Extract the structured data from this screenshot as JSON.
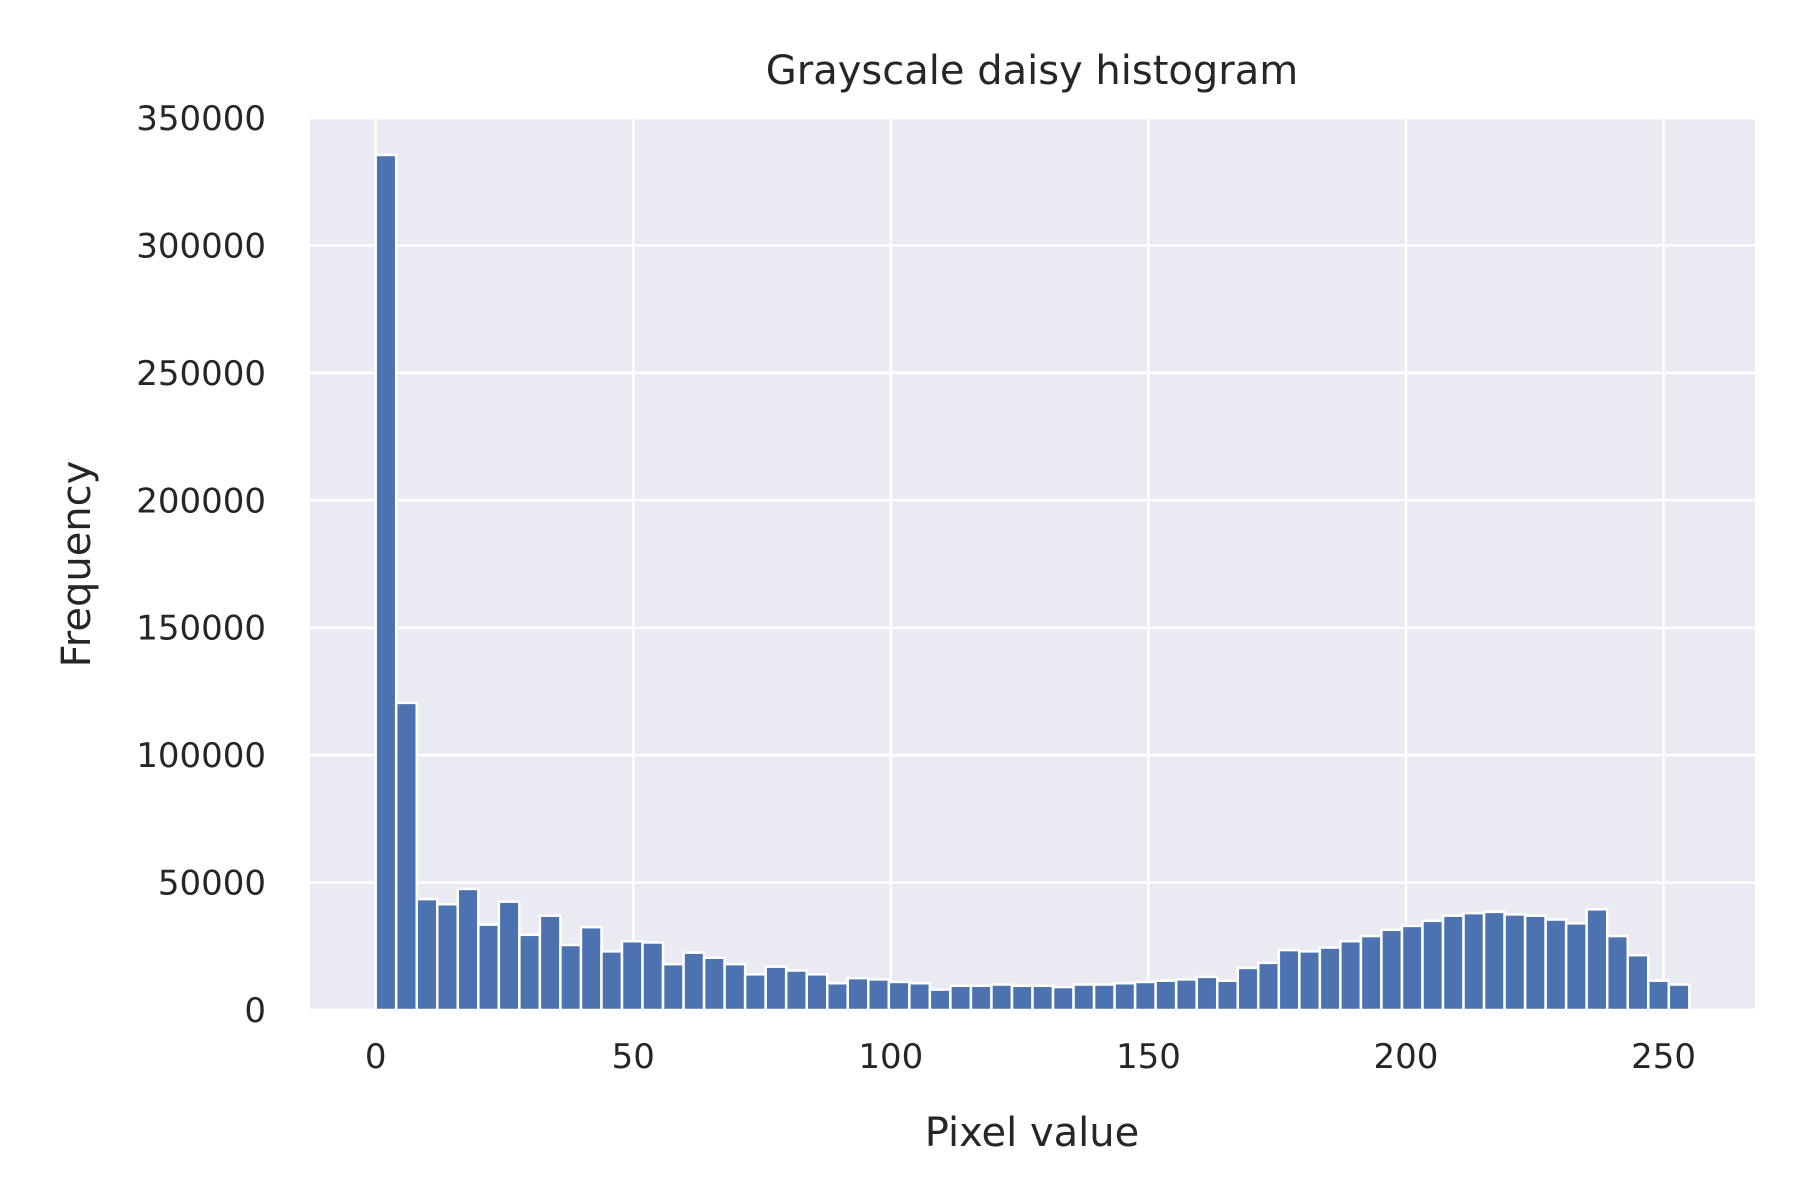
{
  "chart_data": {
    "type": "bar",
    "title": "Grayscale daisy histogram",
    "xlabel": "Pixel value",
    "ylabel": "Frequency",
    "xlim": [
      -12.75,
      267.75
    ],
    "ylim": [
      0,
      350000
    ],
    "grid": true,
    "x_ticks": [
      0,
      50,
      100,
      150,
      200,
      250
    ],
    "y_ticks": [
      0,
      50000,
      100000,
      150000,
      200000,
      250000,
      300000,
      350000
    ],
    "bin_start": 0,
    "bin_end": 255,
    "bin_count": 64,
    "values": [
      335500,
      120500,
      43500,
      41500,
      47500,
      33500,
      42500,
      29500,
      37000,
      25500,
      32500,
      23000,
      27000,
      26500,
      18000,
      22500,
      20500,
      18000,
      14000,
      17000,
      15500,
      14000,
      10500,
      12500,
      12000,
      11000,
      10500,
      8000,
      9500,
      9500,
      10000,
      9500,
      9500,
      9000,
      10000,
      10000,
      10500,
      11000,
      11500,
      12000,
      13000,
      11500,
      16500,
      18500,
      23500,
      23000,
      24500,
      27000,
      29000,
      31500,
      33000,
      35000,
      37000,
      38000,
      38500,
      37500,
      37000,
      35500,
      34000,
      39500,
      29000,
      21500,
      11500,
      10000
    ],
    "colors": {
      "bar": "#4c72b0",
      "bar_edge": "#ffffff",
      "plot_bg": "#eaeaf2",
      "grid": "#ffffff",
      "text": "#262626"
    }
  }
}
